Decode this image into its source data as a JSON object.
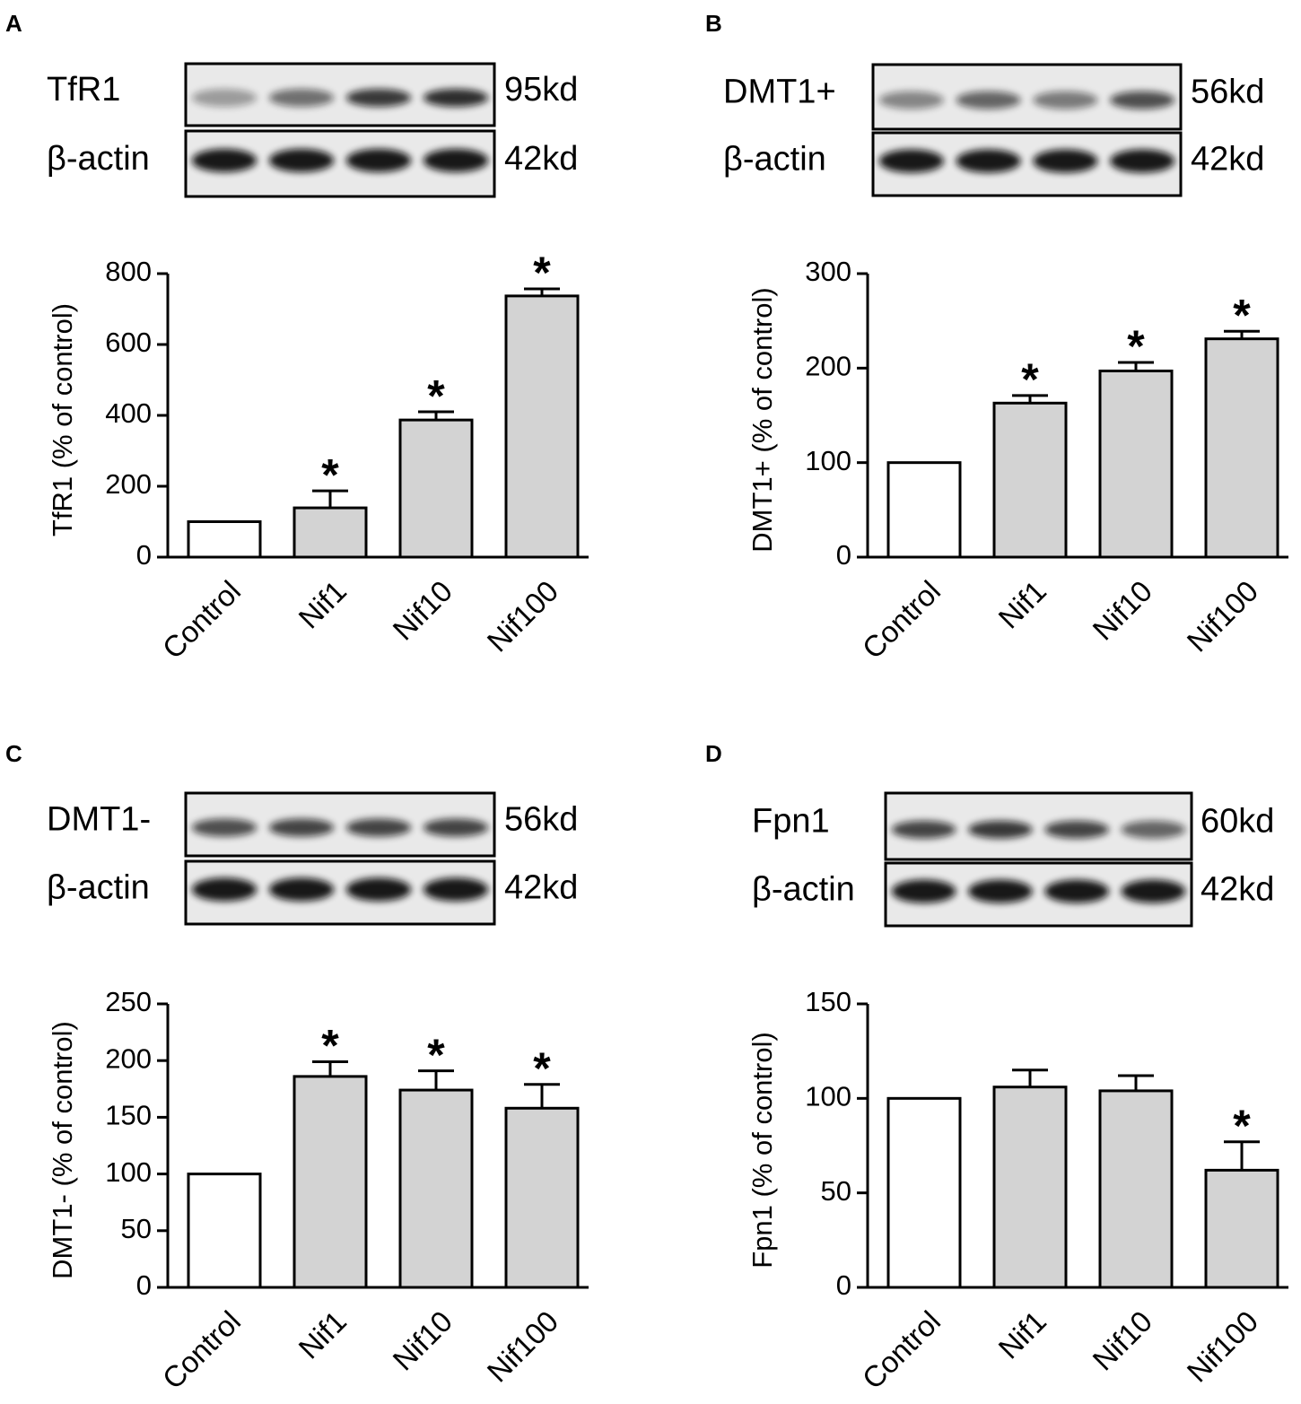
{
  "chart_data": [
    {
      "type": "bar",
      "panel": "A",
      "blot": {
        "target": "TfR1",
        "target_kd": "95kd",
        "control": "β-actin",
        "control_kd": "42kd"
      },
      "ylabel": "TfR1 (% of control)",
      "categories": [
        "Control",
        "Nif1",
        "Nif10",
        "Nif100"
      ],
      "values": [
        100,
        139,
        387,
        737
      ],
      "errors": [
        null,
        48,
        23,
        20
      ],
      "significance": [
        null,
        "*",
        "*",
        "*"
      ],
      "colors": [
        "#ffffff",
        "#d3d3d3",
        "#d3d3d3",
        "#d3d3d3"
      ],
      "ylim": [
        0,
        800
      ],
      "yticks": [
        0,
        200,
        400,
        600,
        800
      ]
    },
    {
      "type": "bar",
      "panel": "B",
      "blot": {
        "target": "DMT1+",
        "target_kd": "56kd",
        "control": "β-actin",
        "control_kd": "42kd"
      },
      "ylabel": "DMT1+ (% of control)",
      "categories": [
        "Control",
        "Nif1",
        "Nif10",
        "Nif100"
      ],
      "values": [
        100,
        163,
        197,
        231
      ],
      "errors": [
        null,
        8,
        9,
        8
      ],
      "significance": [
        null,
        "*",
        "*",
        "*"
      ],
      "colors": [
        "#ffffff",
        "#d3d3d3",
        "#d3d3d3",
        "#d3d3d3"
      ],
      "ylim": [
        0,
        300
      ],
      "yticks": [
        0,
        100,
        200,
        300
      ]
    },
    {
      "type": "bar",
      "panel": "C",
      "blot": {
        "target": "DMT1-",
        "target_kd": "56kd",
        "control": "β-actin",
        "control_kd": "42kd"
      },
      "ylabel": "DMT1- (% of control)",
      "categories": [
        "Control",
        "Nif1",
        "Nif10",
        "Nif100"
      ],
      "values": [
        100,
        186,
        174,
        158
      ],
      "errors": [
        null,
        13,
        17,
        21
      ],
      "significance": [
        null,
        "*",
        "*",
        "*"
      ],
      "colors": [
        "#ffffff",
        "#d3d3d3",
        "#d3d3d3",
        "#d3d3d3"
      ],
      "ylim": [
        0,
        250
      ],
      "yticks": [
        0,
        50,
        100,
        150,
        200,
        250
      ]
    },
    {
      "type": "bar",
      "panel": "D",
      "blot": {
        "target": "Fpn1",
        "target_kd": "60kd",
        "control": "β-actin",
        "control_kd": "42kd"
      },
      "ylabel": "Fpn1 (% of control)",
      "categories": [
        "Control",
        "Nif1",
        "Nif10",
        "Nif100"
      ],
      "values": [
        100,
        106,
        104,
        62
      ],
      "errors": [
        null,
        9,
        8,
        15
      ],
      "significance": [
        null,
        null,
        null,
        "*"
      ],
      "colors": [
        "#ffffff",
        "#d3d3d3",
        "#d3d3d3",
        "#d3d3d3"
      ],
      "ylim": [
        0,
        150
      ],
      "yticks": [
        0,
        50,
        100,
        150
      ]
    }
  ]
}
